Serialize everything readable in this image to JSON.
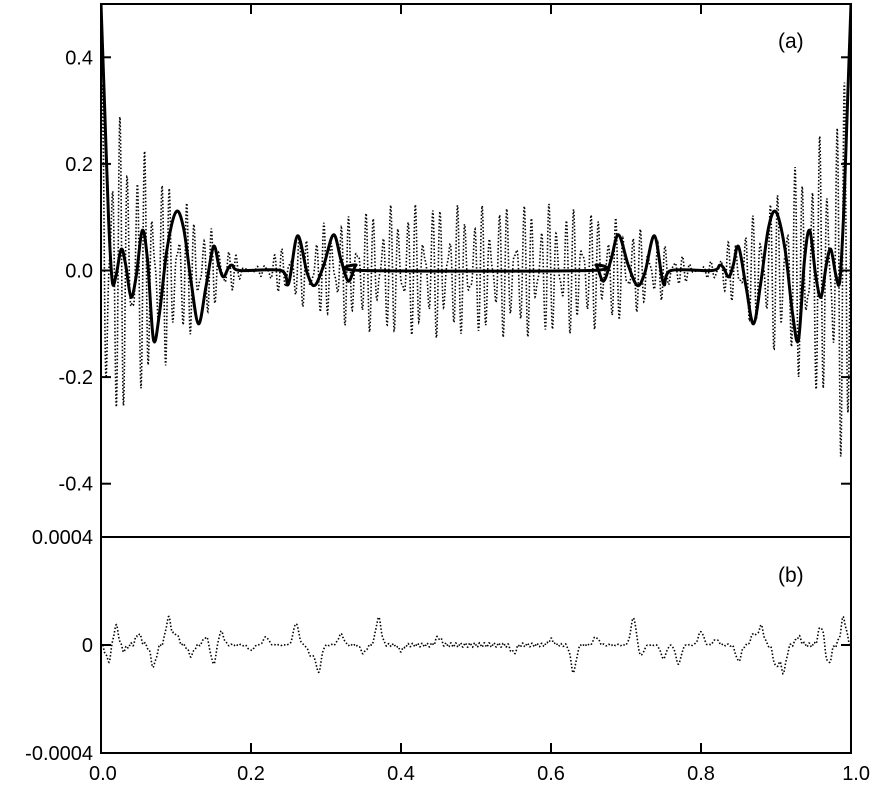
{
  "chart_data": [
    {
      "type": "line",
      "panel_label": "(a)",
      "xlim": [
        0.0,
        1.0
      ],
      "ylim": [
        -0.5,
        0.5
      ],
      "yticks": [
        -0.4,
        -0.2,
        0.0,
        0.2,
        0.4
      ],
      "ytick_labels": [
        "-0.4",
        "-0.2",
        "0.0",
        "0.2",
        "0.4"
      ],
      "grid": false,
      "series": [
        {
          "style": "solid",
          "color": "#000000",
          "points": [
            [
              0.0,
              0.5
            ],
            [
              0.005,
              0.3
            ],
            [
              0.01,
              0.1
            ],
            [
              0.015,
              -0.02
            ],
            [
              0.02,
              -0.01
            ],
            [
              0.027,
              0.04
            ],
            [
              0.033,
              0.01
            ],
            [
              0.04,
              -0.05
            ],
            [
              0.047,
              -0.01
            ],
            [
              0.055,
              0.075
            ],
            [
              0.062,
              0.02
            ],
            [
              0.07,
              -0.13
            ],
            [
              0.078,
              -0.08
            ],
            [
              0.088,
              0.04
            ],
            [
              0.1,
              0.11
            ],
            [
              0.11,
              0.08
            ],
            [
              0.12,
              -0.02
            ],
            [
              0.13,
              -0.1
            ],
            [
              0.14,
              -0.03
            ],
            [
              0.15,
              0.045
            ],
            [
              0.157,
              0.01
            ],
            [
              0.163,
              -0.012
            ],
            [
              0.17,
              0.005
            ],
            [
              0.175,
              0.01
            ],
            [
              0.185,
              0.0
            ],
            [
              0.24,
              0.0
            ],
            [
              0.25,
              -0.025
            ],
            [
              0.262,
              0.065
            ],
            [
              0.275,
              -0.005
            ],
            [
              0.285,
              -0.028
            ],
            [
              0.297,
              0.01
            ],
            [
              0.31,
              0.067
            ],
            [
              0.32,
              0.02
            ],
            [
              0.33,
              -0.02
            ],
            [
              0.34,
              0.01
            ],
            [
              0.35,
              0.0
            ],
            [
              0.65,
              0.0
            ],
            [
              0.66,
              0.01
            ],
            [
              0.67,
              -0.02
            ],
            [
              0.68,
              0.02
            ],
            [
              0.69,
              0.067
            ],
            [
              0.703,
              0.01
            ],
            [
              0.715,
              -0.028
            ],
            [
              0.725,
              -0.005
            ],
            [
              0.738,
              0.065
            ],
            [
              0.75,
              -0.025
            ],
            [
              0.76,
              0.0
            ],
            [
              0.815,
              0.0
            ],
            [
              0.825,
              0.01
            ],
            [
              0.83,
              0.005
            ],
            [
              0.837,
              -0.012
            ],
            [
              0.843,
              0.01
            ],
            [
              0.85,
              0.045
            ],
            [
              0.86,
              -0.03
            ],
            [
              0.87,
              -0.1
            ],
            [
              0.88,
              -0.02
            ],
            [
              0.89,
              0.08
            ],
            [
              0.9,
              0.11
            ],
            [
              0.912,
              0.04
            ],
            [
              0.922,
              -0.08
            ],
            [
              0.93,
              -0.13
            ],
            [
              0.938,
              0.02
            ],
            [
              0.945,
              0.075
            ],
            [
              0.953,
              -0.01
            ],
            [
              0.96,
              -0.05
            ],
            [
              0.967,
              0.01
            ],
            [
              0.973,
              0.04
            ],
            [
              0.98,
              -0.01
            ],
            [
              0.985,
              -0.02
            ],
            [
              0.99,
              0.1
            ],
            [
              0.995,
              0.3
            ],
            [
              1.0,
              0.5
            ]
          ]
        },
        {
          "style": "dotted",
          "color": "#000000",
          "oscillation": {
            "cycles": 90,
            "envelope": [
              [
                0.0,
                0.42
              ],
              [
                0.03,
                0.28
              ],
              [
                0.1,
                0.24
              ],
              [
                0.2,
                0.22
              ],
              [
                0.5,
                0.16
              ],
              [
                0.8,
                0.22
              ],
              [
                0.9,
                0.24
              ],
              [
                0.97,
                0.28
              ],
              [
                1.0,
                0.42
              ]
            ]
          }
        }
      ]
    },
    {
      "type": "line",
      "panel_label": "(b)",
      "xlim": [
        0.0,
        1.0
      ],
      "ylim": [
        -0.0004,
        0.0004
      ],
      "xticks": [
        0.0,
        0.2,
        0.4,
        0.6,
        0.8,
        1.0
      ],
      "xtick_labels": [
        "0.0",
        "0.2",
        "0.4",
        "0.6",
        "0.8",
        "1.0"
      ],
      "yticks": [
        -0.0004,
        0,
        0.0004
      ],
      "ytick_labels": [
        "-0.0004",
        "0",
        "0.0004"
      ],
      "grid": false,
      "series": [
        {
          "style": "dotted",
          "color": "#000000",
          "spikes": [
            [
              0.01,
              -6e-05
            ],
            [
              0.02,
              7e-05
            ],
            [
              0.03,
              -2e-05
            ],
            [
              0.05,
              4e-05
            ],
            [
              0.07,
              -8e-05
            ],
            [
              0.09,
              0.0001
            ],
            [
              0.1,
              4e-05
            ],
            [
              0.12,
              -4e-05
            ],
            [
              0.14,
              3e-05
            ],
            [
              0.15,
              -7e-05
            ],
            [
              0.16,
              5e-05
            ],
            [
              0.2,
              -2e-05
            ],
            [
              0.22,
              3e-05
            ],
            [
              0.26,
              8e-05
            ],
            [
              0.28,
              -4e-05
            ],
            [
              0.29,
              -0.0001
            ],
            [
              0.32,
              4e-05
            ],
            [
              0.35,
              -3e-05
            ],
            [
              0.37,
              0.0001
            ],
            [
              0.4,
              -2e-05
            ],
            [
              0.45,
              3e-05
            ],
            [
              0.55,
              -3e-05
            ],
            [
              0.6,
              2e-05
            ],
            [
              0.63,
              -0.0001
            ],
            [
              0.66,
              3e-05
            ],
            [
              0.71,
              0.0001
            ],
            [
              0.72,
              -4e-05
            ],
            [
              0.75,
              -5e-05
            ],
            [
              0.77,
              -7e-05
            ],
            [
              0.8,
              5e-05
            ],
            [
              0.82,
              2e-05
            ],
            [
              0.85,
              -6e-05
            ],
            [
              0.87,
              4e-05
            ],
            [
              0.88,
              7e-05
            ],
            [
              0.9,
              -8e-05
            ],
            [
              0.91,
              -0.0001
            ],
            [
              0.93,
              3e-05
            ],
            [
              0.96,
              7e-05
            ],
            [
              0.97,
              -7e-05
            ],
            [
              0.99,
              0.0001
            ]
          ]
        }
      ]
    }
  ]
}
